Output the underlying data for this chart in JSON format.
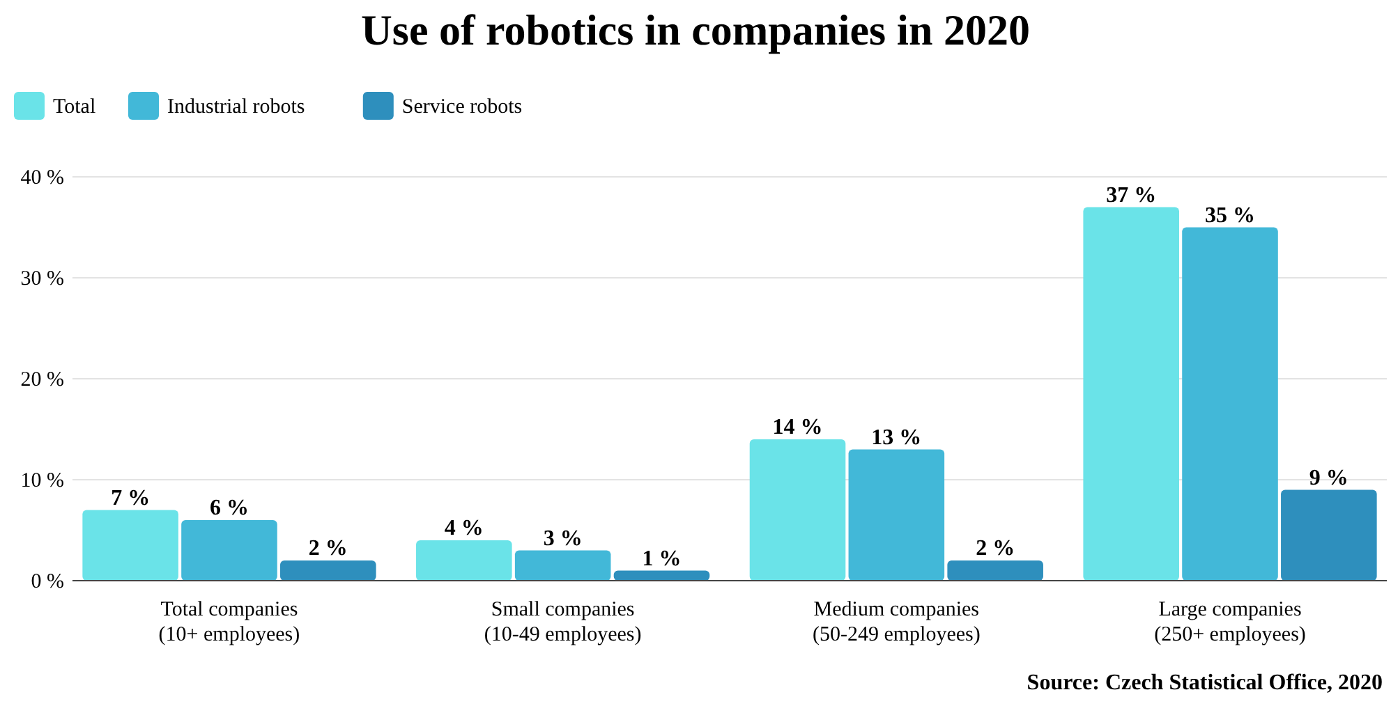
{
  "chart_data": {
    "type": "bar",
    "title": "Use of robotics in companies in 2020",
    "categories": [
      "Total companies\n(10+ employees)",
      "Small companies\n(10-49 employees)",
      "Medium companies\n(50-249 employees)",
      "Large companies\n(250+ employees)"
    ],
    "series": [
      {
        "name": "Total",
        "color": "#6ae3e8",
        "values": [
          7,
          4,
          14,
          37
        ],
        "value_labels": [
          "7 %",
          "4 %",
          "14 %",
          "37 %"
        ]
      },
      {
        "name": "Industrial robots",
        "color": "#42b8d8",
        "values": [
          6,
          3,
          13,
          35
        ],
        "value_labels": [
          "6 %",
          "3 %",
          "13 %",
          "35 %"
        ]
      },
      {
        "name": "Service robots",
        "color": "#2e8fbd",
        "values": [
          2,
          1,
          2,
          9
        ],
        "value_labels": [
          "2 %",
          "1 %",
          "2 %",
          "9 %"
        ]
      }
    ],
    "ylim": [
      0,
      40
    ],
    "yticks": [
      {
        "value": 0,
        "label": "0 %"
      },
      {
        "value": 10,
        "label": "10 %"
      },
      {
        "value": 20,
        "label": "20 %"
      },
      {
        "value": 30,
        "label": "30 %"
      },
      {
        "value": 40,
        "label": "40 %"
      }
    ],
    "grid": "y",
    "legend": "top left",
    "annotations": [
      "Source: Czech Statistical Office, 2020"
    ]
  }
}
